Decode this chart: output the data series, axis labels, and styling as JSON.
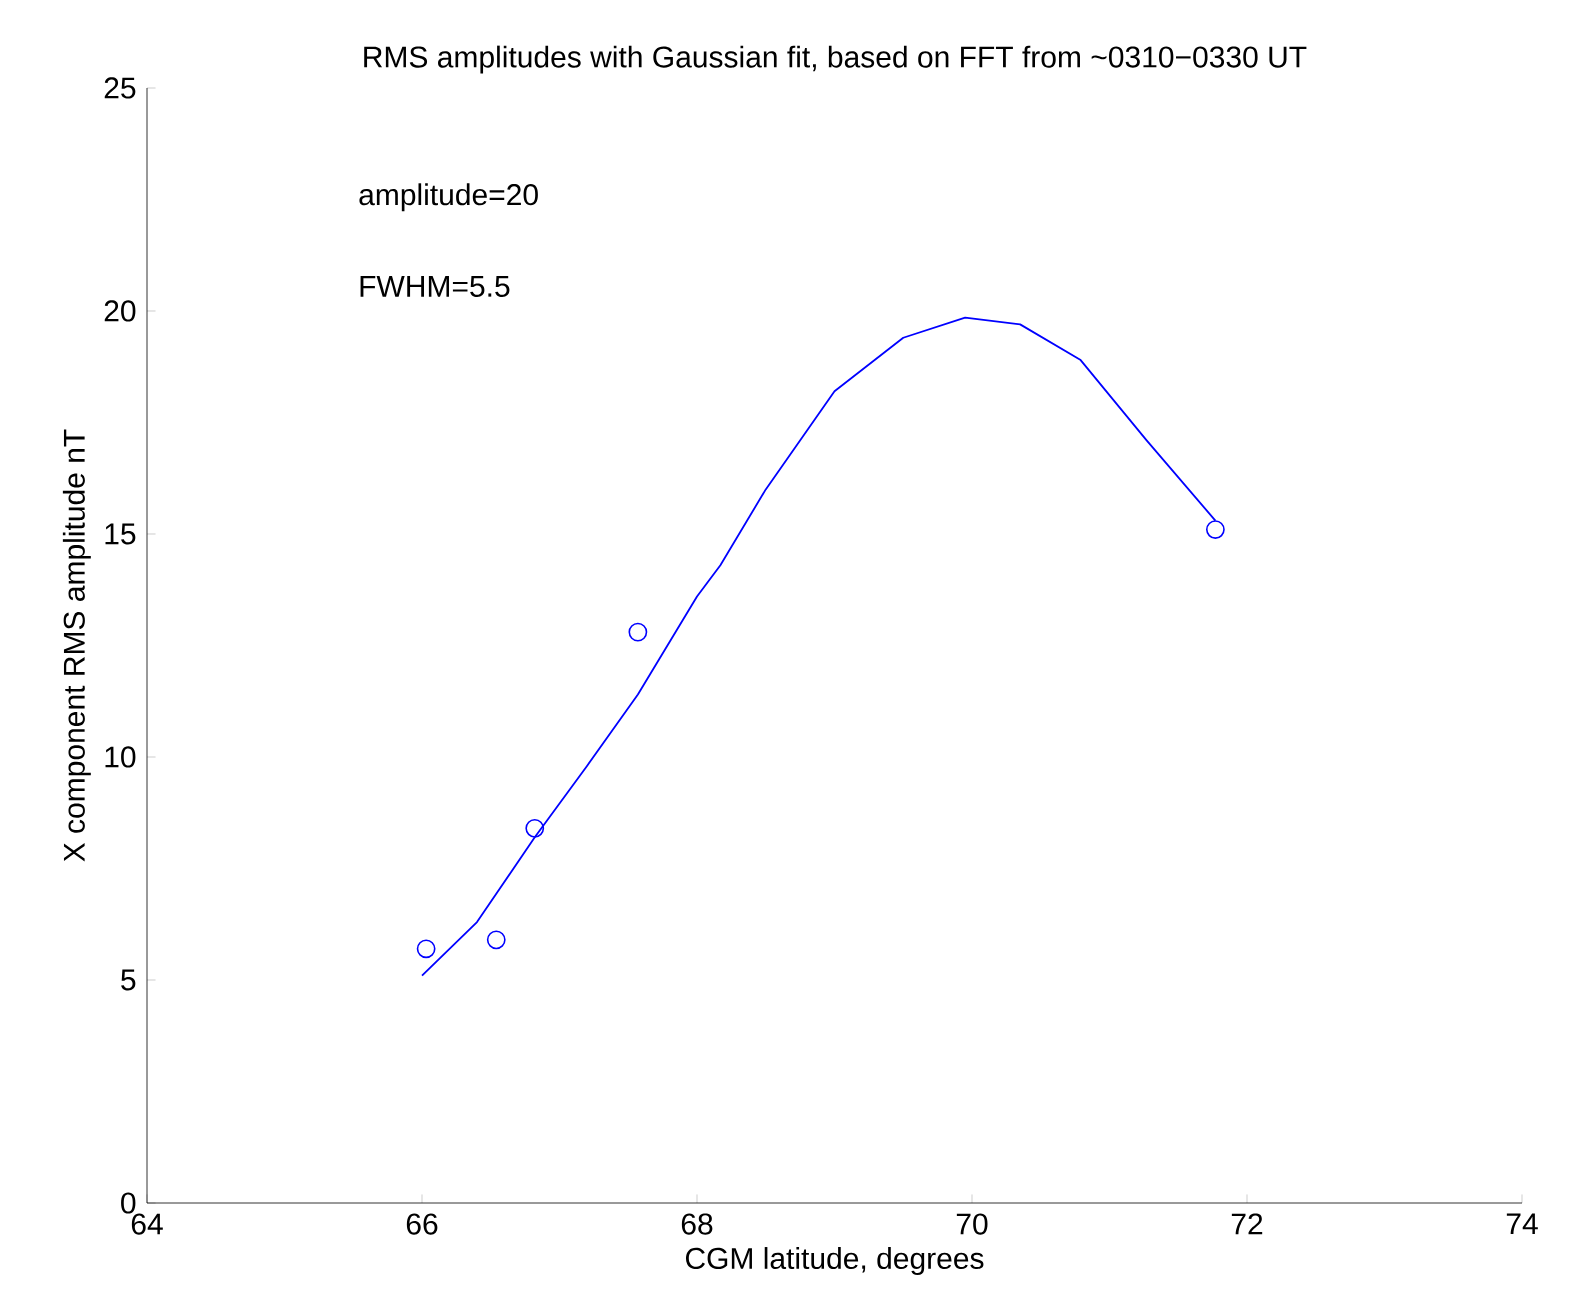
{
  "chart_data": {
    "type": "scatter",
    "title": "RMS amplitudes with Gaussian fit, based on FFT from ~0310−0330 UT",
    "xlabel": "CGM latitude, degrees",
    "ylabel": "X component RMS amplitude nT",
    "annotations": [
      "amplitude=20",
      "FWHM=5.5"
    ],
    "xlim": [
      64,
      74
    ],
    "xticks": [
      64,
      66,
      68,
      70,
      72,
      74
    ],
    "ylim": [
      0,
      25
    ],
    "yticks": [
      0,
      5,
      10,
      15,
      20,
      25
    ],
    "grid": false,
    "series": [
      {
        "marker": "circle",
        "color": "#0000ff",
        "x": [
          66.03,
          66.54,
          66.82,
          67.57,
          71.77
        ],
        "values": [
          5.7,
          5.9,
          8.4,
          12.8,
          15.1
        ]
      },
      {
        "type": "line",
        "marker": "none",
        "line_style": "solid",
        "color": "#0000ff",
        "x": [
          66.0,
          66.4,
          66.82,
          67.2,
          67.57,
          68.0,
          68.17,
          68.5,
          69.0,
          69.5,
          69.95,
          70.35,
          70.79,
          71.27,
          71.77
        ],
        "values": [
          5.1,
          6.3,
          8.2,
          9.8,
          11.4,
          13.6,
          14.3,
          16.0,
          18.2,
          19.4,
          19.85,
          19.7,
          18.9,
          17.1,
          15.3
        ]
      }
    ]
  }
}
